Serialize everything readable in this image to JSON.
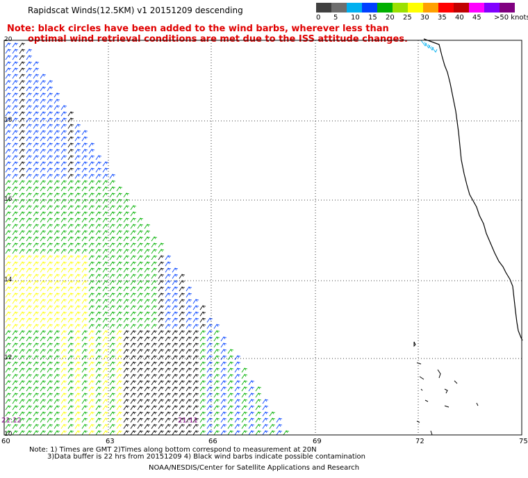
{
  "title": "Rapidscat Winds(12.5KM)  v1  20151209  descending",
  "note": {
    "line1": "Note: black circles have been added to the wind barbs, wherever less than",
    "line2": "optimal wind retrieval conditions are met due to the ISS attitude changes."
  },
  "legend": {
    "labels": [
      "0",
      "5",
      "10",
      "15",
      "20",
      "25",
      "30",
      "35",
      "40",
      "45",
      ">50 knots"
    ],
    "colors": [
      "#404040",
      "#6e6e6e",
      "#00b0f0",
      "#0040ff",
      "#00b000",
      "#9be000",
      "#ffff00",
      "#ffa000",
      "#ff0000",
      "#c00000",
      "#ff00ff",
      "#8000ff",
      "#800080"
    ]
  },
  "axes": {
    "lat_labels": [
      "20",
      "18",
      "16",
      "14",
      "12",
      "10"
    ],
    "lon_labels": [
      "60",
      "63",
      "66",
      "69",
      "72",
      "75"
    ]
  },
  "timestamps": [
    "21:12",
    "21:11"
  ],
  "footer": {
    "line1": "Note: 1) Times are GMT 2)Times along bottom correspond to measurement at 20N",
    "line2": "3)Data buffer is 22 hrs from 20151209 4) Black wind barbs indicate possible contamination",
    "credit": "NOAA/NESDIS/Center for Satellite Applications and Research"
  }
}
